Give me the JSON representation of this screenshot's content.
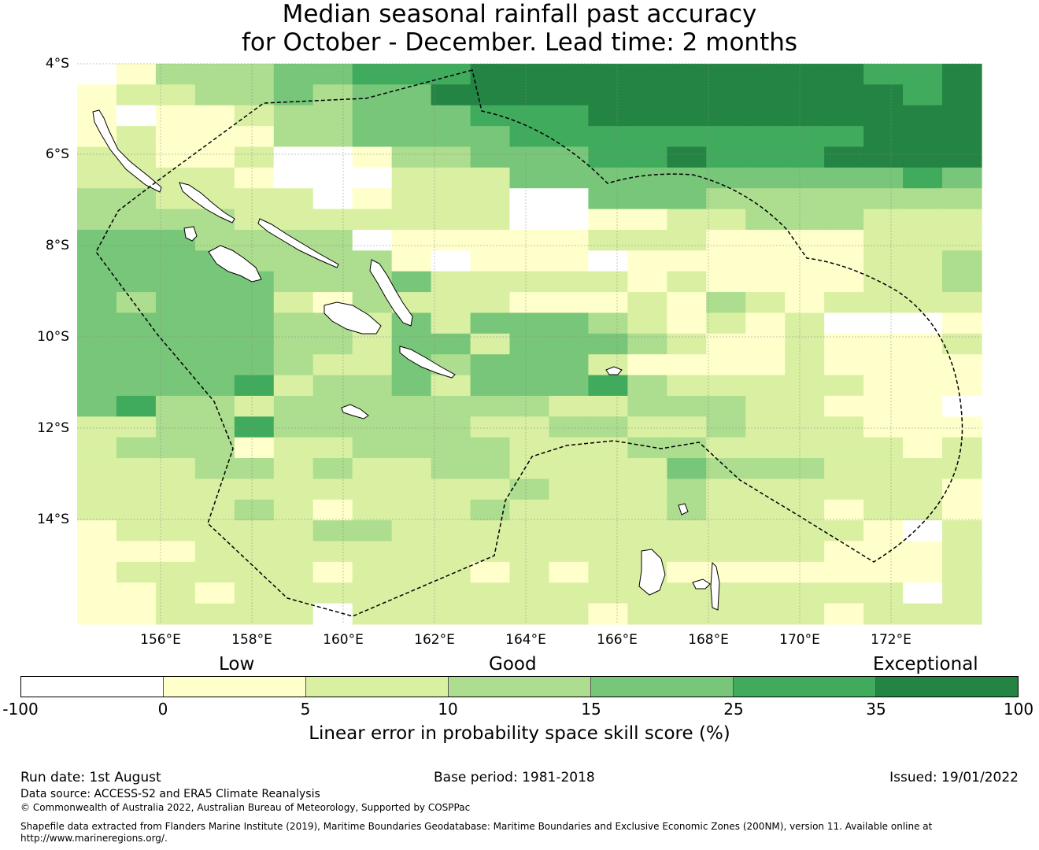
{
  "title": {
    "line1": "Median seasonal rainfall past accuracy",
    "line2": "for October - December. Lead time: 2 months"
  },
  "map": {
    "lat_labels": [
      "4°S",
      "6°S",
      "8°S",
      "10°S",
      "12°S",
      "14°S"
    ],
    "lon_labels": [
      "156°E",
      "158°E",
      "160°E",
      "162°E",
      "164°E",
      "166°E",
      "168°E",
      "170°E",
      "172°E"
    ],
    "grid_colors": [
      "#ffffff",
      "#ffffcc",
      "#d9f0a3",
      "#addd8e",
      "#78c679",
      "#41ab5d",
      "#238443"
    ],
    "grid": [
      "01333445556666666666556",
      "12233434466666666666656",
      "10112334445556666666666",
      "12111334444555555555666",
      "22112001334445565556666",
      "22221000222444444444454",
      "33222201222004443333333",
      "33332222222001122333222",
      "44433330111112221111222",
      "44443333101110111111223",
      "44444333422222121111223",
      "43444213222111213212222",
      "44444332424443212120001",
      "44444332442444321121112",
      "44444322434442111121111",
      "44445233424445322222111",
      "45332333333322333221110",
      "22335333332233223222111",
      "23331223333222332222212",
      "22233232233222243332222",
      "22222222222322232222221",
      "22223212223222232221221",
      "12222233222222222222102",
      "11122222222222222221112",
      "12222212221212211111112",
      "11212222222222222222202",
      "11222202222221222221222"
    ],
    "legend": {
      "categories": [
        "Low",
        "Good",
        "Exceptional"
      ],
      "ticks": [
        "-100",
        "0",
        "5",
        "10",
        "15",
        "25",
        "35",
        "100"
      ],
      "colors": [
        "#ffffff",
        "#ffffcc",
        "#d9f0a3",
        "#addd8e",
        "#78c679",
        "#41ab5d",
        "#238443"
      ],
      "label": "Linear error in probability space skill score (%)"
    }
  },
  "footer": {
    "run_date": "Run date: 1st August",
    "base_period": "Base period: 1981-2018",
    "issued": "Issued: 19/01/2022",
    "data_source": "Data source: ACCESS-S2 and ERA5 Climate Reanalysis",
    "copyright": "© Commonwealth of Australia 2022, Australian Bureau of Meteorology, Supported by COSPPac",
    "shapefile_line1": "Shapefile data extracted from Flanders Marine Institute (2019), Maritime Boundaries Geodatabase: Maritime Boundaries and Exclusive Economic Zones (200NM), version 11. Available online at",
    "shapefile_line2": "http://www.marineregions.org/."
  }
}
